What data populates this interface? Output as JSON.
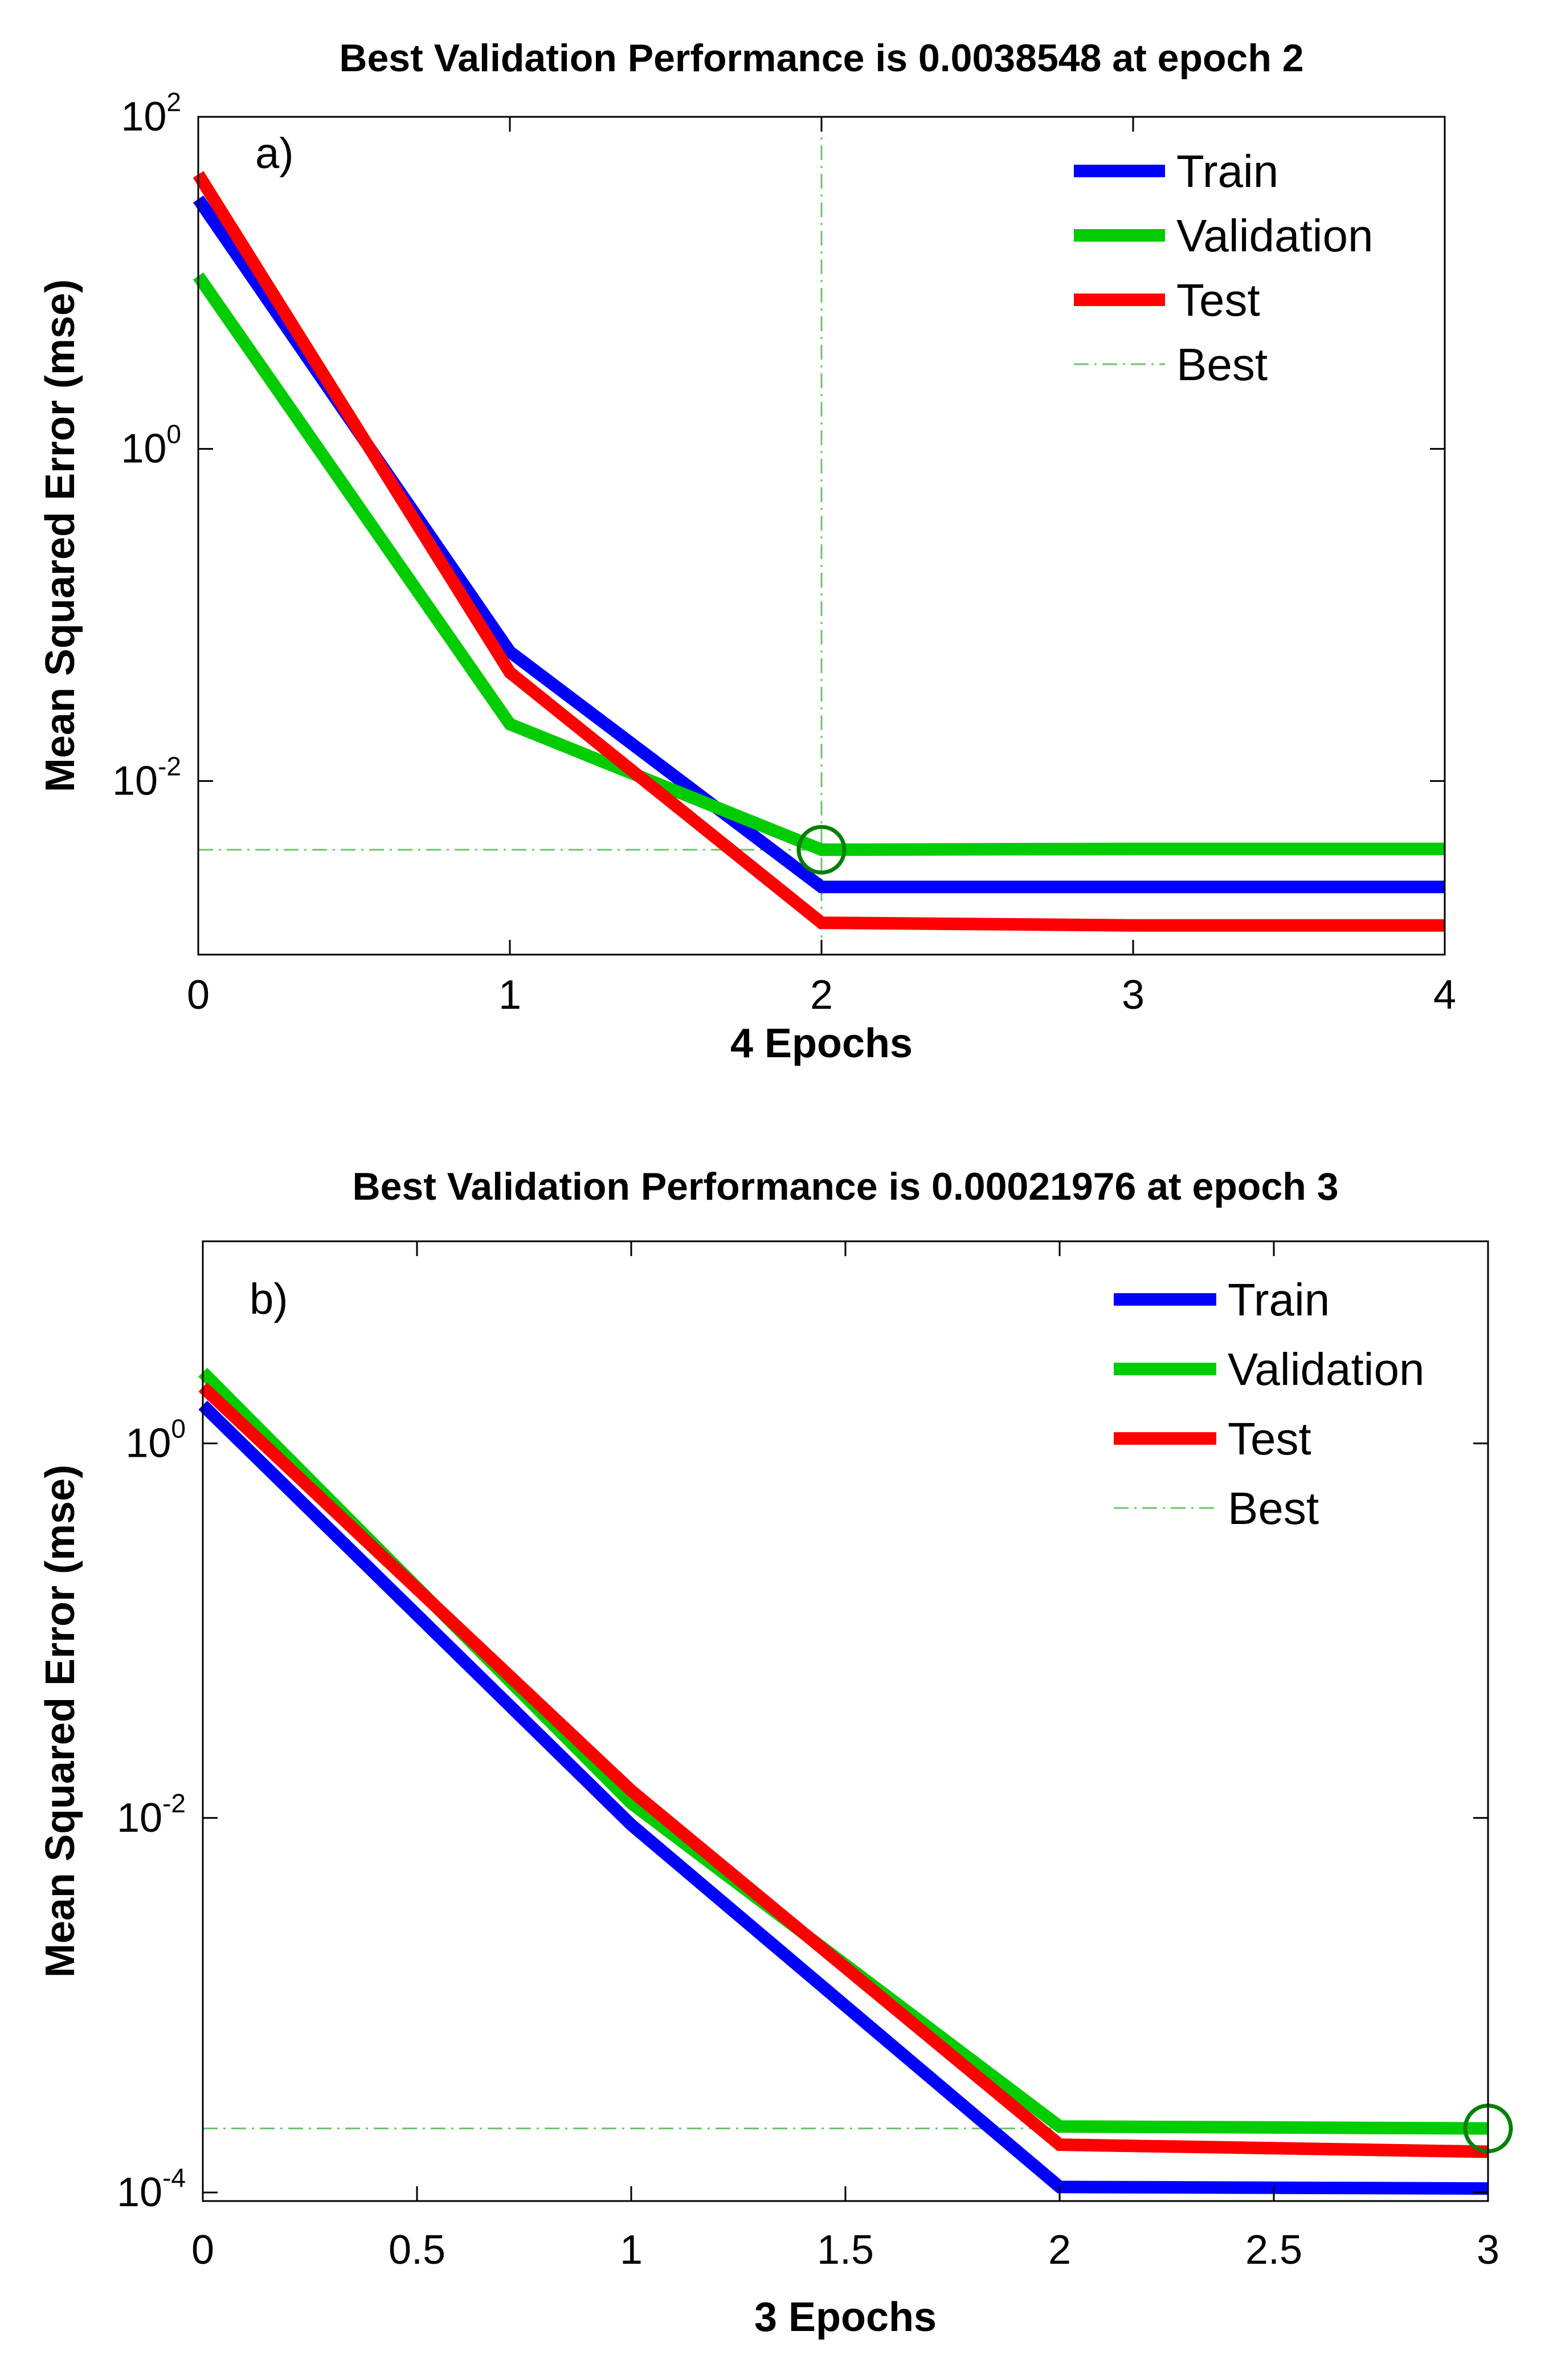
{
  "chart_data": [
    {
      "type": "line",
      "panel_label": "a)",
      "title": "Best Validation Performance is 0.0038548 at epoch 2",
      "xlabel": "4 Epochs",
      "ylabel": "Mean Squared Error  (mse)",
      "yscale": "log",
      "xlim": [
        0,
        4
      ],
      "ylim": [
        0.0009,
        100
      ],
      "x_ticks": [
        "0",
        "1",
        "2",
        "3",
        "4"
      ],
      "y_ticks": [
        {
          "base": "10",
          "exp": "-2"
        },
        {
          "base": "10",
          "exp": "0"
        },
        {
          "base": "10",
          "exp": "2"
        }
      ],
      "x": [
        0,
        1,
        2,
        3,
        4
      ],
      "series": [
        {
          "name": "Train",
          "color": "#0000ff",
          "values": [
            32,
            0.06,
            0.0023,
            0.0023,
            0.0023
          ]
        },
        {
          "name": "Validation",
          "color": "#00cc00",
          "values": [
            11,
            0.022,
            0.0038548,
            0.0039,
            0.0039
          ]
        },
        {
          "name": "Test",
          "color": "#ff0000",
          "values": [
            45,
            0.045,
            0.0014,
            0.00135,
            0.00135
          ]
        }
      ],
      "best": {
        "name": "Best",
        "epoch": 2,
        "value": 0.0038548,
        "color": "#008000"
      },
      "legend": {
        "position": "top-right",
        "entries": [
          "Train",
          "Validation",
          "Test",
          "Best"
        ]
      }
    },
    {
      "type": "line",
      "panel_label": "b)",
      "title": "Best Validation Performance is 0.00021976 at epoch 3",
      "xlabel": "3 Epochs",
      "ylabel": "Mean Squared Error  (mse)",
      "yscale": "log",
      "xlim": [
        0,
        3
      ],
      "ylim": [
        9e-05,
        12
      ],
      "x_ticks": [
        "0",
        "0.5",
        "1",
        "1.5",
        "2",
        "2.5",
        "3"
      ],
      "y_ticks": [
        {
          "base": "10",
          "exp": "-4"
        },
        {
          "base": "10",
          "exp": "-2"
        },
        {
          "base": "10",
          "exp": "0"
        }
      ],
      "x": [
        0,
        1,
        2,
        3
      ],
      "series": [
        {
          "name": "Train",
          "color": "#0000ff",
          "values": [
            1.6,
            0.0092,
            0.000107,
            0.000105
          ]
        },
        {
          "name": "Validation",
          "color": "#00cc00",
          "values": [
            2.4,
            0.012,
            0.000225,
            0.00021976
          ]
        },
        {
          "name": "Test",
          "color": "#ff0000",
          "values": [
            2.0,
            0.014,
            0.00018,
            0.000165
          ]
        }
      ],
      "best": {
        "name": "Best",
        "epoch": 3,
        "value": 0.00021976,
        "color": "#008000"
      },
      "legend": {
        "position": "top-right",
        "entries": [
          "Train",
          "Validation",
          "Test",
          "Best"
        ]
      }
    }
  ]
}
